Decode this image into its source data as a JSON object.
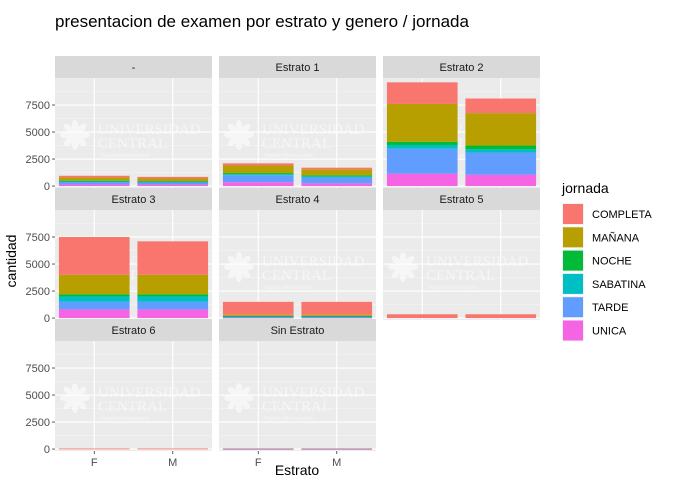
{
  "chart_data": {
    "type": "bar",
    "layout": "stacked-faceted",
    "title": "presentacion de examen por estrato y genero / jornada",
    "xlabel": "Estrato",
    "ylabel": "cantidad",
    "ylim": [
      0,
      10000
    ],
    "yticks": [
      0,
      2500,
      5000,
      7500
    ],
    "ytick_labels": [
      "0",
      "2500",
      "5000",
      "7500"
    ],
    "categories": [
      "F",
      "M"
    ],
    "stack_order": [
      "COMPLETA",
      "MAÑANA",
      "NOCHE",
      "SABATINA",
      "TARDE",
      "UNICA"
    ],
    "legend": {
      "title": "jornada",
      "position": "right",
      "entries": [
        {
          "name": "COMPLETA",
          "color": "#F8766D"
        },
        {
          "name": "MAÑANA",
          "color": "#B79F00"
        },
        {
          "name": "NOCHE",
          "color": "#00BA38"
        },
        {
          "name": "SABATINA",
          "color": "#00BFC4"
        },
        {
          "name": "TARDE",
          "color": "#619CFF"
        },
        {
          "name": "UNICA",
          "color": "#F564E3"
        }
      ]
    },
    "watermark": {
      "line1": "UNIVERSIDAD",
      "line2": "CENTRAL",
      "line3": "Vigilada Mineducación"
    },
    "panels": [
      {
        "strip": "-",
        "series": {
          "F": {
            "COMPLETA": 150,
            "MAÑANA": 300,
            "NOCHE": 50,
            "SABATINA": 50,
            "TARDE": 250,
            "UNICA": 150
          },
          "M": {
            "COMPLETA": 150,
            "MAÑANA": 250,
            "NOCHE": 50,
            "SABATINA": 50,
            "TARDE": 200,
            "UNICA": 150
          }
        }
      },
      {
        "strip": "Estrato 1",
        "series": {
          "F": {
            "COMPLETA": 200,
            "MAÑANA": 700,
            "NOCHE": 100,
            "SABATINA": 100,
            "TARDE": 650,
            "UNICA": 350
          },
          "M": {
            "COMPLETA": 150,
            "MAÑANA": 550,
            "NOCHE": 100,
            "SABATINA": 100,
            "TARDE": 550,
            "UNICA": 250
          }
        }
      },
      {
        "strip": "Estrato 2",
        "series": {
          "F": {
            "COMPLETA": 2000,
            "MAÑANA": 3500,
            "NOCHE": 300,
            "SABATINA": 350,
            "TARDE": 2300,
            "UNICA": 1150
          },
          "M": {
            "COMPLETA": 1350,
            "MAÑANA": 3000,
            "NOCHE": 350,
            "SABATINA": 300,
            "TARDE": 2050,
            "UNICA": 1050
          }
        }
      },
      {
        "strip": "Estrato 3",
        "series": {
          "F": {
            "COMPLETA": 3500,
            "MAÑANA": 1800,
            "NOCHE": 200,
            "SABATINA": 500,
            "TARDE": 700,
            "UNICA": 800
          },
          "M": {
            "COMPLETA": 3100,
            "MAÑANA": 1800,
            "NOCHE": 200,
            "SABATINA": 500,
            "TARDE": 700,
            "UNICA": 800
          }
        }
      },
      {
        "strip": "Estrato 4",
        "series": {
          "F": {
            "COMPLETA": 1200,
            "MAÑANA": 100,
            "NOCHE": 50,
            "SABATINA": 50,
            "TARDE": 50,
            "UNICA": 50
          },
          "M": {
            "COMPLETA": 1200,
            "MAÑANA": 100,
            "NOCHE": 50,
            "SABATINA": 50,
            "TARDE": 50,
            "UNICA": 50
          }
        }
      },
      {
        "strip": "Estrato 5",
        "series": {
          "F": {
            "COMPLETA": 350,
            "MAÑANA": 0,
            "NOCHE": 0,
            "SABATINA": 0,
            "TARDE": 0,
            "UNICA": 0
          },
          "M": {
            "COMPLETA": 350,
            "MAÑANA": 0,
            "NOCHE": 0,
            "SABATINA": 0,
            "TARDE": 0,
            "UNICA": 0
          }
        }
      },
      {
        "strip": "Estrato 6",
        "series": {
          "F": {
            "COMPLETA": 50,
            "MAÑANA": 0,
            "NOCHE": 0,
            "SABATINA": 0,
            "TARDE": 0,
            "UNICA": 0
          },
          "M": {
            "COMPLETA": 50,
            "MAÑANA": 0,
            "NOCHE": 0,
            "SABATINA": 0,
            "TARDE": 0,
            "UNICA": 0
          }
        }
      },
      {
        "strip": "Sin Estrato",
        "series": {
          "F": {
            "COMPLETA": 50,
            "MAÑANA": 0,
            "NOCHE": 0,
            "SABATINA": 0,
            "TARDE": 10,
            "UNICA": 0
          },
          "M": {
            "COMPLETA": 50,
            "MAÑANA": 0,
            "NOCHE": 0,
            "SABATINA": 0,
            "TARDE": 10,
            "UNICA": 0
          }
        }
      }
    ]
  }
}
